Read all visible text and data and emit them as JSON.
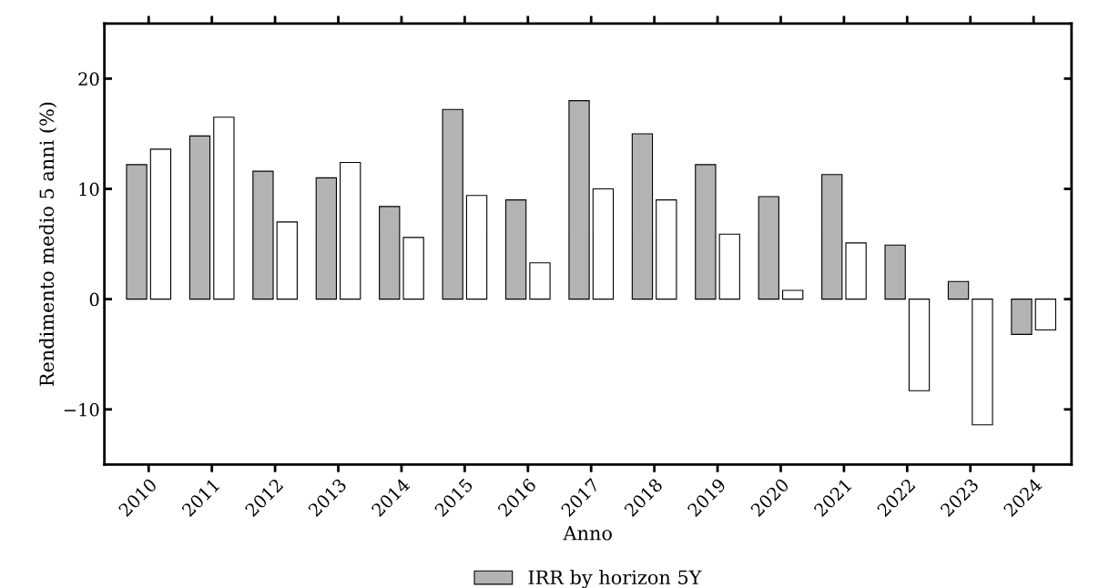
{
  "chart_data": {
    "type": "bar",
    "xlabel": "Anno",
    "ylabel": "Rendimento medio 5 anni (%)",
    "categories": [
      "2010",
      "2011",
      "2012",
      "2013",
      "2014",
      "2015",
      "2016",
      "2017",
      "2018",
      "2019",
      "2020",
      "2021",
      "2022",
      "2023",
      "2024"
    ],
    "series": [
      {
        "name": "IRR by horizon 5Y",
        "color": "#b3b3b3",
        "values": [
          12.2,
          14.8,
          11.6,
          11.0,
          8.4,
          17.2,
          9.0,
          18.0,
          15.0,
          12.2,
          9.3,
          11.3,
          4.9,
          1.6,
          -3.2
        ]
      },
      {
        "color": "#ffffff",
        "values": [
          13.6,
          16.5,
          7.0,
          12.4,
          5.6,
          9.4,
          3.3,
          10.0,
          9.0,
          5.9,
          0.8,
          5.1,
          -8.3,
          -11.4,
          -2.8
        ]
      }
    ],
    "ylim": [
      -15,
      25
    ],
    "yticks": [
      {
        "value": -10,
        "label": "−10"
      },
      0,
      10,
      20
    ],
    "grid": false,
    "legend": "bottom"
  }
}
